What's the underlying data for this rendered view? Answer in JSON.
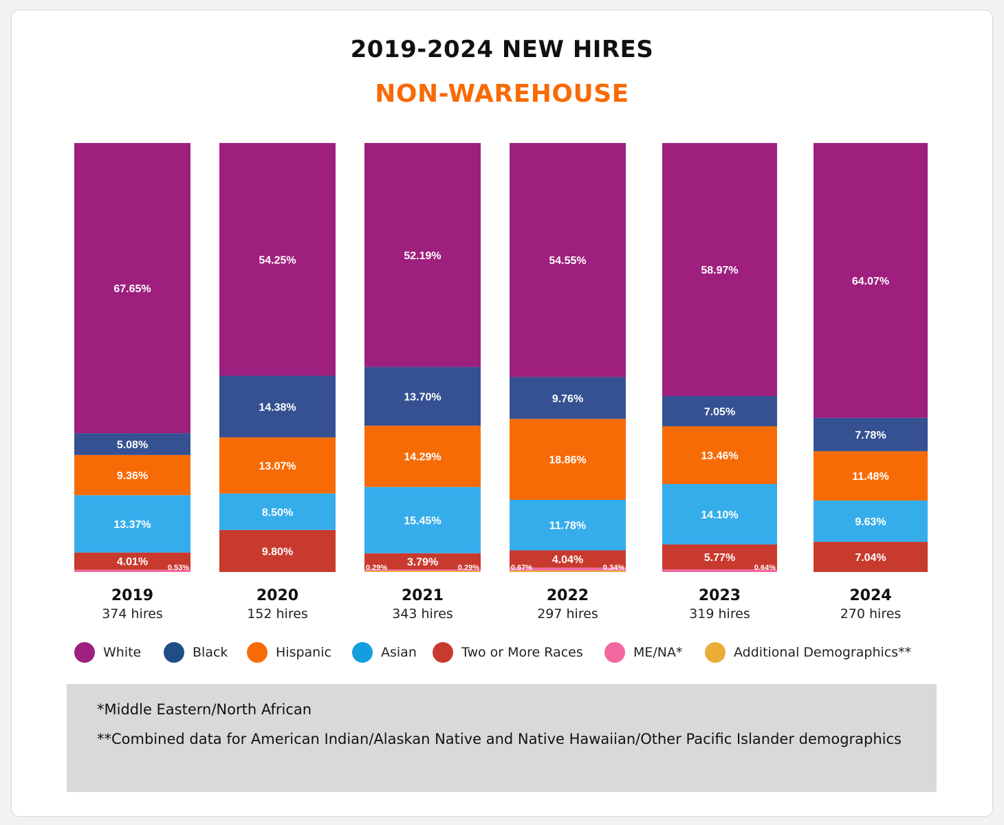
{
  "title": "2019-2024 NEW HIRES",
  "subtitle": "NON-WAREHOUSE",
  "colors": {
    "White": "#9e1f7e",
    "Black": "#355191",
    "Hispanic": "#f76b07",
    "Asian": "#36adeb",
    "Two or More Races": "#c93a2e",
    "ME/NA*": "#f2679e",
    "Additional Demographics**": "#e9ad38",
    "title": "#111111",
    "subtitle": "#f76b07"
  },
  "legend": [
    {
      "label": "White",
      "color": "#9e1f7e"
    },
    {
      "label": "Black",
      "color": "#1f4e86"
    },
    {
      "label": "Hispanic",
      "color": "#f76b07"
    },
    {
      "label": "Asian",
      "color": "#129edf"
    },
    {
      "label": "Two or More Races",
      "color": "#c93a2e"
    },
    {
      "label": "ME/NA*",
      "color": "#f2679e"
    },
    {
      "label": "Additional Demographics**",
      "color": "#e9ad38"
    }
  ],
  "chart_data": {
    "type": "bar",
    "stacked": true,
    "categories": [
      "2019",
      "2020",
      "2021",
      "2022",
      "2023",
      "2024"
    ],
    "hires": [
      "374 hires",
      "152 hires",
      "343 hires",
      "297 hires",
      "319 hires",
      "270 hires"
    ],
    "series": [
      {
        "name": "White",
        "values": [
          67.65,
          54.25,
          52.19,
          54.55,
          58.97,
          64.07
        ],
        "labels": [
          "67.65%",
          "54.25%",
          "52.19%",
          "54.55%",
          "58.97%",
          "64.07%"
        ]
      },
      {
        "name": "Black",
        "values": [
          5.08,
          14.38,
          13.7,
          9.76,
          7.05,
          7.78
        ],
        "labels": [
          "5.08%",
          "14.38%",
          "13.70%",
          "9.76%",
          "7.05%",
          "7.78%"
        ]
      },
      {
        "name": "Hispanic",
        "values": [
          9.36,
          13.07,
          14.29,
          18.86,
          13.46,
          11.48
        ],
        "labels": [
          "9.36%",
          "13.07%",
          "14.29%",
          "18.86%",
          "13.46%",
          "11.48%"
        ]
      },
      {
        "name": "Asian",
        "values": [
          13.37,
          8.5,
          15.45,
          11.78,
          14.1,
          9.63
        ],
        "labels": [
          "13.37%",
          "8.50%",
          "15.45%",
          "11.78%",
          "14.10%",
          "9.63%"
        ]
      },
      {
        "name": "Two or More Races",
        "values": [
          4.01,
          9.8,
          3.79,
          4.04,
          5.77,
          7.04
        ],
        "labels": [
          "4.01%",
          "9.80%",
          "3.79%",
          "4.04%",
          "5.77%",
          "7.04%"
        ]
      },
      {
        "name": "ME/NA*",
        "values": [
          0.53,
          0,
          0.29,
          0.67,
          0.64,
          0
        ],
        "labels": [
          "0.53%",
          "",
          "0.29%",
          "0.67%",
          "0.64%",
          ""
        ]
      },
      {
        "name": "Additional Demographics**",
        "values": [
          0,
          0,
          0.29,
          0.34,
          0,
          0
        ],
        "labels": [
          "",
          "",
          "0.29%",
          "0.34%",
          "",
          ""
        ]
      }
    ],
    "ylim": [
      0,
      100
    ],
    "grid": false,
    "legend_position": "bottom"
  },
  "notes": [
    "*Middle Eastern/North African",
    "**Combined data for American Indian/Alaskan Native and Native Hawaiian/Other Pacific Islander demographics"
  ]
}
